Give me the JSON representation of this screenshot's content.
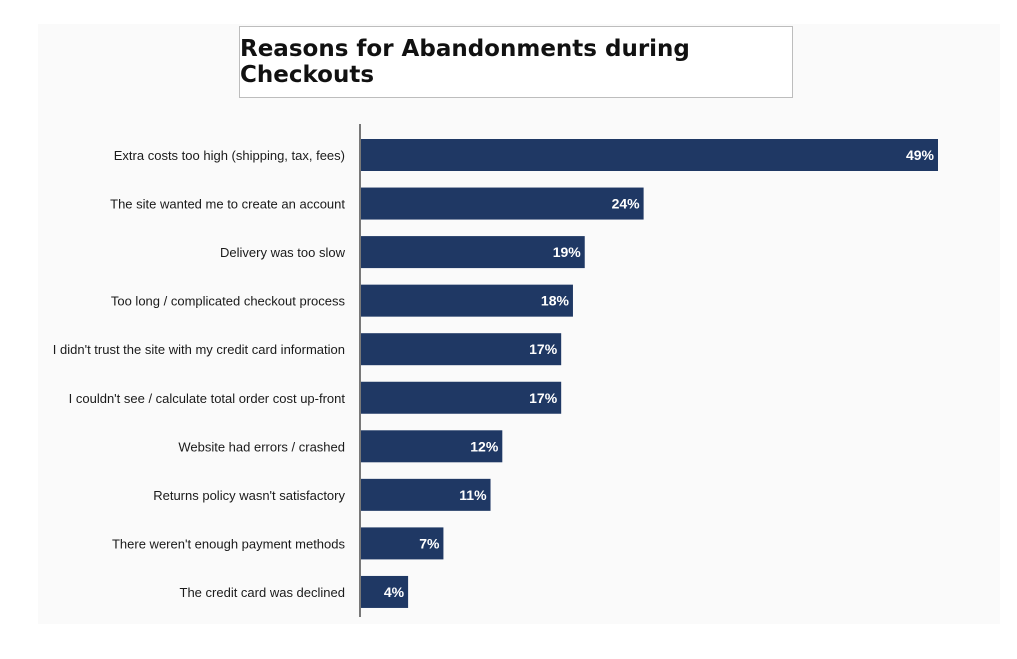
{
  "chart_data": {
    "type": "bar",
    "orientation": "horizontal",
    "title": "Reasons for Abandonments during Checkouts",
    "categories": [
      "Extra costs too high (shipping, tax, fees)",
      "The site wanted me to create an account",
      "Delivery was too slow",
      "Too long / complicated checkout process",
      "I didn't trust the site with my credit card information",
      "I couldn't see / calculate total order cost up-front",
      "Website had errors / crashed",
      "Returns policy wasn't satisfactory",
      "There weren't enough payment methods",
      "The credit card was declined"
    ],
    "values": [
      49,
      24,
      19,
      18,
      17,
      17,
      12,
      11,
      7,
      4
    ],
    "value_labels": [
      "49%",
      "24%",
      "19%",
      "18%",
      "17%",
      "17%",
      "12%",
      "11%",
      "7%",
      "4%"
    ],
    "unit": "%",
    "xlim": [
      0,
      49
    ],
    "grid": false,
    "legend": "none",
    "colors": {
      "bar": "#1f3864",
      "axis": "#333333"
    }
  }
}
